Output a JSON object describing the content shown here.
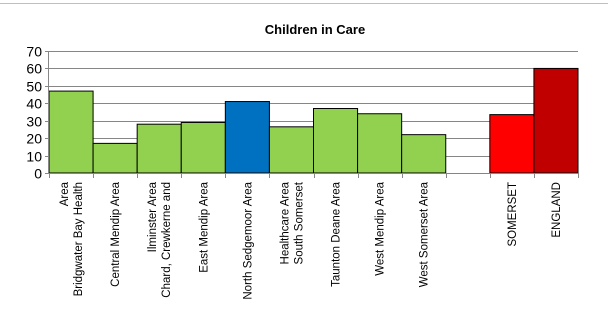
{
  "chart_data": {
    "type": "bar",
    "title": "Children in Care",
    "xlabel": "",
    "ylabel": "",
    "ylim": [
      0,
      70
    ],
    "yticks": [
      0,
      10,
      20,
      30,
      40,
      50,
      60,
      70
    ],
    "grid": true,
    "legend": "none",
    "categories": [
      "Bridgwater Bay Health Area",
      "Central Mendip Area",
      "Chard, Crewkerne and Ilminster Area",
      "East Mendip Area",
      "North Sedgemoor Area",
      "South Somerset Healthcare Area",
      "Taunton Deane Area",
      "West Mendip Area",
      "West Somerset Area",
      "",
      "SOMERSET",
      "ENGLAND"
    ],
    "category_lines": [
      [
        "Bridgwater Bay Health",
        "Area"
      ],
      [
        "Central Mendip Area"
      ],
      [
        "Chard, Crewkerne and",
        "Ilminster Area"
      ],
      [
        "East Mendip Area"
      ],
      [
        "North Sedgemoor Area"
      ],
      [
        "South Somerset",
        "Healthcare Area"
      ],
      [
        "Taunton Deane Area"
      ],
      [
        "West Mendip Area"
      ],
      [
        "West Somerset Area"
      ],
      [],
      [
        "SOMERSET"
      ],
      [
        "ENGLAND"
      ]
    ],
    "values": [
      47,
      17,
      28,
      29,
      41,
      26.5,
      37,
      34,
      22,
      null,
      33.5,
      60
    ],
    "colors": [
      "#92d050",
      "#92d050",
      "#92d050",
      "#92d050",
      "#0070c0",
      "#92d050",
      "#92d050",
      "#92d050",
      "#92d050",
      "#ffffff",
      "#ff0000",
      "#c00000"
    ]
  }
}
